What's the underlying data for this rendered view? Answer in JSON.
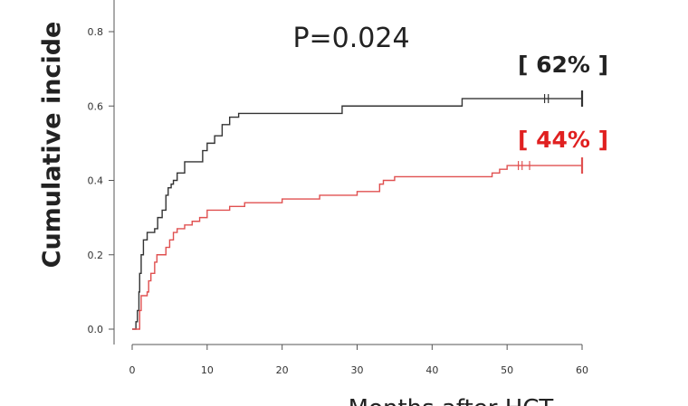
{
  "chart_data": {
    "type": "line",
    "ylabel": "Cumulative incide",
    "xlabel": "Months after HCT",
    "annotation_p": "P=0.024",
    "xlim": [
      0,
      60
    ],
    "ylim": [
      0.0,
      0.8
    ],
    "x_ticks": [
      "0",
      "10",
      "20",
      "30",
      "40",
      "50",
      "60"
    ],
    "y_ticks": [
      "0.0",
      "0.2",
      "0.4",
      "0.6",
      "0.8"
    ],
    "series": [
      {
        "color": "#333333",
        "end_label": "[ 62% ]",
        "label_color": "#222222",
        "censor_x": [
          55.0,
          55.5,
          60.0
        ],
        "points": [
          [
            0,
            0
          ],
          [
            0.5,
            0.02
          ],
          [
            0.7,
            0.05
          ],
          [
            0.9,
            0.1
          ],
          [
            1.0,
            0.15
          ],
          [
            1.2,
            0.2
          ],
          [
            1.5,
            0.24
          ],
          [
            2.0,
            0.26
          ],
          [
            3.0,
            0.27
          ],
          [
            3.4,
            0.3
          ],
          [
            4.0,
            0.32
          ],
          [
            4.5,
            0.36
          ],
          [
            4.8,
            0.38
          ],
          [
            5.2,
            0.39
          ],
          [
            5.5,
            0.4
          ],
          [
            6.0,
            0.42
          ],
          [
            7.0,
            0.45
          ],
          [
            9.0,
            0.45
          ],
          [
            9.4,
            0.48
          ],
          [
            10.0,
            0.5
          ],
          [
            11.0,
            0.52
          ],
          [
            12.0,
            0.55
          ],
          [
            13.0,
            0.57
          ],
          [
            14.2,
            0.58
          ],
          [
            28.0,
            0.6
          ],
          [
            44.0,
            0.62
          ],
          [
            60.0,
            0.62
          ]
        ]
      },
      {
        "color": "#e05050",
        "end_label": "[ 44% ]",
        "label_color": "#e02020",
        "censor_x": [
          51.5,
          52.0,
          53.0,
          60.0
        ],
        "points": [
          [
            0,
            0
          ],
          [
            0.9,
            0.0
          ],
          [
            1.0,
            0.05
          ],
          [
            1.2,
            0.09
          ],
          [
            2.0,
            0.1
          ],
          [
            2.2,
            0.13
          ],
          [
            2.5,
            0.15
          ],
          [
            3.0,
            0.18
          ],
          [
            3.3,
            0.2
          ],
          [
            4.5,
            0.22
          ],
          [
            5.0,
            0.24
          ],
          [
            5.5,
            0.26
          ],
          [
            6.0,
            0.27
          ],
          [
            7.0,
            0.28
          ],
          [
            8.0,
            0.29
          ],
          [
            9.0,
            0.3
          ],
          [
            10.0,
            0.32
          ],
          [
            13.0,
            0.33
          ],
          [
            15.0,
            0.34
          ],
          [
            20.0,
            0.35
          ],
          [
            25.0,
            0.36
          ],
          [
            30.0,
            0.37
          ],
          [
            33.0,
            0.39
          ],
          [
            33.5,
            0.4
          ],
          [
            35.0,
            0.41
          ],
          [
            48.0,
            0.42
          ],
          [
            49.0,
            0.43
          ],
          [
            50.0,
            0.44
          ],
          [
            60.0,
            0.44
          ]
        ]
      }
    ]
  }
}
